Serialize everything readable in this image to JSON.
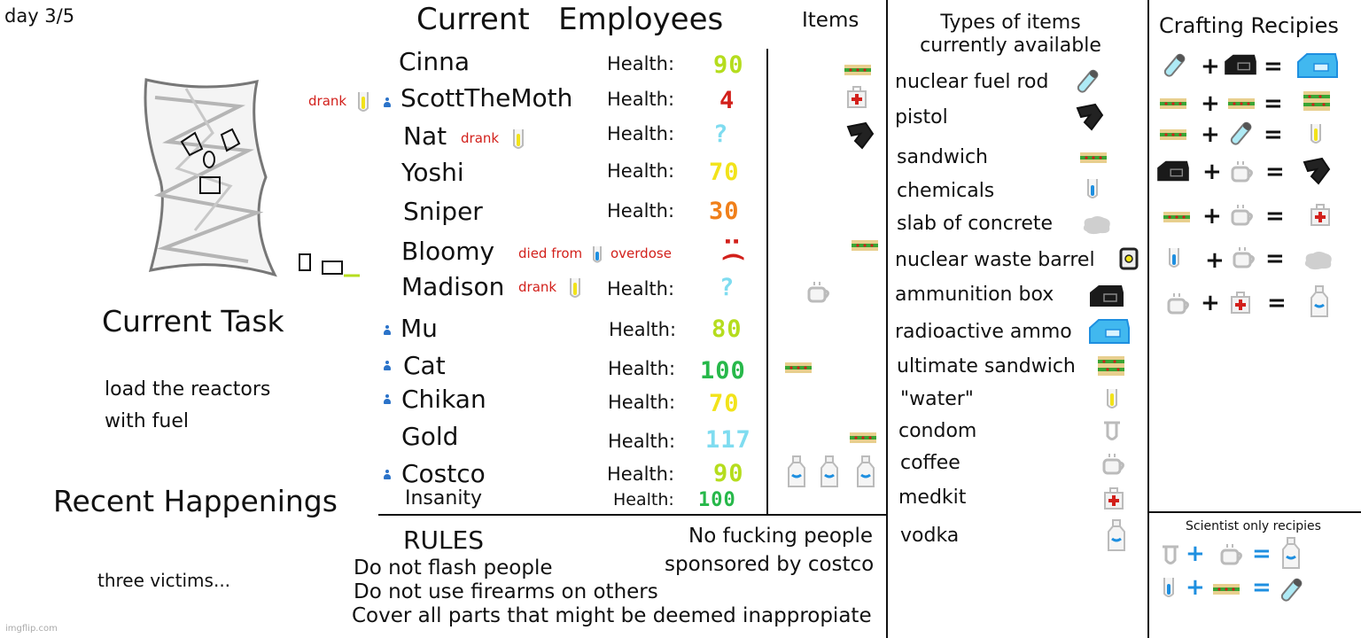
{
  "day": "day 3/5",
  "headers": {
    "employees": "Current   Employees",
    "items": "Items",
    "types": "Types of items\ncurrently available",
    "crafting": "Crafting Recipies",
    "scientist": "Scientist only recipies"
  },
  "task": {
    "heading": "Current Task",
    "line1": "load the reactors",
    "line2": "with fuel"
  },
  "happenings": {
    "heading": "Recent Happenings",
    "text": "three victims..."
  },
  "health_label": "Health:",
  "employees": [
    {
      "name": "Cinna",
      "health": "90",
      "color": "#b5dd1e"
    },
    {
      "name": "ScottTheMoth",
      "health": "4",
      "color": "#d2201b",
      "note": "drank"
    },
    {
      "name": "Nat",
      "health": "?",
      "color": "#7fdcf0",
      "note": "drank"
    },
    {
      "name": "Yoshi",
      "health": "70",
      "color": "#f2e31a"
    },
    {
      "name": "Sniper",
      "health": "30",
      "color": "#f07f1a"
    },
    {
      "name": "Bloomy",
      "note1": "died from",
      "note2": "overdose",
      "face": ":("
    },
    {
      "name": "Madison",
      "health": "?",
      "color": "#7fdcf0",
      "note": "drank"
    },
    {
      "name": "Mu",
      "health": "80",
      "color": "#b5dd1e"
    },
    {
      "name": "Cat",
      "health": "100",
      "color": "#27b84a"
    },
    {
      "name": "Chikan",
      "health": "70",
      "color": "#f2e31a"
    },
    {
      "name": "Gold",
      "health": "117",
      "color": "#7fdcf0"
    },
    {
      "name": "Costco",
      "health": "90",
      "color": "#b5dd1e"
    },
    {
      "name": "Insanity",
      "health": "100",
      "color": "#27b84a"
    }
  ],
  "rules": {
    "heading": "RULES",
    "r1": "Do not flash people",
    "r2": "Do not use firearms on others",
    "r3": "Cover all parts that might be deemed inappropiate",
    "side1": "No fucking people",
    "side2": "sponsored by costco"
  },
  "types": [
    "nuclear fuel rod",
    "pistol",
    "sandwich",
    "chemicals",
    "slab of concrete",
    "nuclear waste barrel",
    "ammunition box",
    "radioactive ammo",
    "ultimate sandwich",
    "\"water\"",
    "condom",
    "coffee",
    "medkit",
    "vodka"
  ],
  "watermark": "imgflip.com"
}
